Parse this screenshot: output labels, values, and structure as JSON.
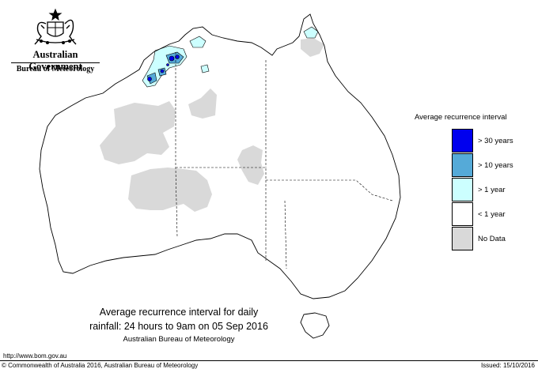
{
  "header": {
    "government": "Australian Government",
    "bureau": "Bureau of Meteorology"
  },
  "legend": {
    "title": "Average recurrence interval",
    "items": [
      {
        "label": "> 30 years",
        "color": "#0000ee"
      },
      {
        "label": "> 10 years",
        "color": "#55aad8"
      },
      {
        "label": "> 1 year",
        "color": "#ccffff"
      },
      {
        "label": "< 1 year",
        "color": "#ffffff"
      },
      {
        "label": "No Data",
        "color": "#d9d9d9"
      }
    ]
  },
  "caption": {
    "line1": "Average recurrence interval for daily",
    "line2": "rainfall: 24 hours to 9am on 05 Sep 2016",
    "line3": "Australian Bureau of Meteorology"
  },
  "footer": {
    "url": "http://www.bom.gov.au",
    "copyright": "© Commonwealth of Australia 2016, Australian Bureau of Meteorology",
    "issued": "Issued: 15/10/2016"
  },
  "colors": {
    "no_data": "#d9d9d9",
    "gt_1_year": "#ccffff",
    "gt_10_years": "#55aad8",
    "gt_30_years": "#0000ee",
    "outline": "#000000"
  }
}
